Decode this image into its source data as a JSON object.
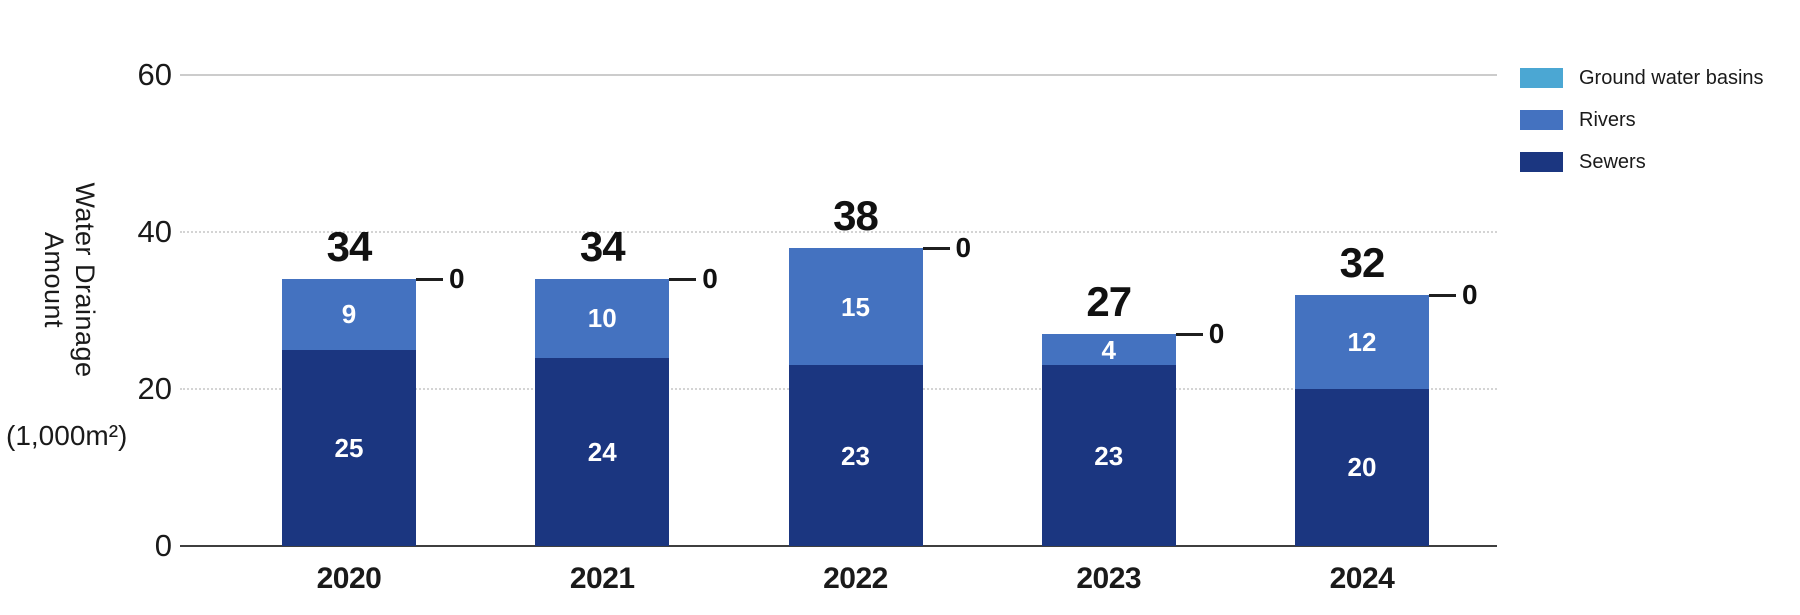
{
  "chart_data": {
    "type": "bar",
    "stacked": true,
    "title": "",
    "ylabel_lines": [
      "Water Drainage",
      "Amount"
    ],
    "y_unit": "(1,000m²)",
    "xlabel": "",
    "categories": [
      "2020",
      "2021",
      "2022",
      "2023",
      "2024"
    ],
    "series": [
      {
        "name": "Ground water basins",
        "color": "#4BA7D3",
        "values": [
          0,
          0,
          0,
          0,
          0
        ]
      },
      {
        "name": "Rivers",
        "color": "#4472C0",
        "values": [
          9,
          10,
          15,
          4,
          12
        ]
      },
      {
        "name": "Sewers",
        "color": "#1B3680",
        "values": [
          25,
          24,
          23,
          23,
          20
        ]
      }
    ],
    "totals": [
      34,
      34,
      38,
      27,
      32
    ],
    "zero_callout_labels": [
      "0",
      "0",
      "0",
      "0",
      "0"
    ],
    "y_ticks": [
      0,
      20,
      40,
      60
    ],
    "ylim": [
      0,
      60
    ],
    "grid": "horizontal, dotted at 20 and 40, solid light at 60",
    "legend_position": "top-right",
    "legend_order": [
      "Ground water basins",
      "Rivers",
      "Sewers"
    ]
  },
  "colors": {
    "sewers": "#1B3680",
    "rivers": "#4472C0",
    "ground_water_basins": "#4BA7D3",
    "axis_line": "#3f3f3f",
    "gridline": "#d4d4d4",
    "text": "#1a1a1a"
  }
}
